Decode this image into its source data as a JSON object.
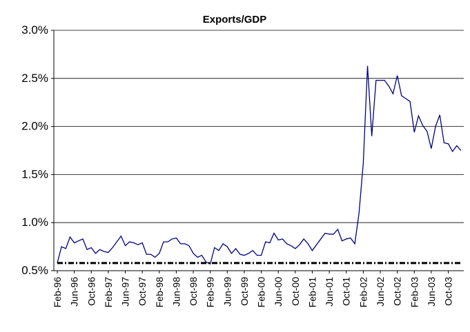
{
  "chart_data": {
    "type": "line",
    "title": "Exports/GDP",
    "categories": [
      "Feb-96",
      null,
      null,
      null,
      "Jun-96",
      null,
      null,
      null,
      "Oct-96",
      null,
      null,
      null,
      "Feb-97",
      null,
      null,
      null,
      "Jun-97",
      null,
      null,
      null,
      "Oct-97",
      null,
      null,
      null,
      "Feb-98",
      null,
      null,
      null,
      "Jun-98",
      null,
      null,
      null,
      "Oct-98",
      null,
      null,
      null,
      "Feb-99",
      null,
      null,
      null,
      "Jun-99",
      null,
      null,
      null,
      "Oct-99",
      null,
      null,
      null,
      "Feb-00",
      null,
      null,
      null,
      "Jun-00",
      null,
      null,
      null,
      "Oct-00",
      null,
      null,
      null,
      "Feb-01",
      null,
      null,
      null,
      "Jun-01",
      null,
      null,
      null,
      "Oct-01",
      null,
      null,
      null,
      "Feb-02",
      null,
      null,
      null,
      "Jun-02",
      null,
      null,
      null,
      "Oct-02",
      null,
      null,
      null,
      "Feb-03",
      null,
      null,
      null,
      "Jun-03",
      null,
      null,
      null,
      "Oct-03",
      null,
      null,
      null
    ],
    "series": [
      {
        "color": "#000080",
        "values": [
          0.58,
          0.75,
          0.73,
          0.85,
          0.79,
          0.81,
          0.83,
          0.72,
          0.74,
          0.68,
          0.72,
          0.7,
          0.69,
          0.74,
          0.8,
          0.86,
          0.76,
          0.8,
          0.79,
          0.77,
          0.79,
          0.67,
          0.67,
          0.64,
          0.68,
          0.8,
          0.8,
          0.83,
          0.84,
          0.78,
          0.78,
          0.76,
          0.68,
          0.64,
          0.66,
          0.59,
          0.57,
          0.74,
          0.71,
          0.78,
          0.75,
          0.68,
          0.73,
          0.67,
          0.66,
          0.68,
          0.71,
          0.66,
          0.66,
          0.8,
          0.79,
          0.89,
          0.82,
          0.83,
          0.78,
          0.76,
          0.73,
          0.77,
          0.83,
          0.78,
          0.71,
          0.77,
          0.83,
          0.89,
          0.88,
          0.88,
          0.93,
          0.81,
          0.83,
          0.84,
          0.78,
          1.1,
          1.62,
          2.63,
          1.9,
          2.48,
          2.48,
          2.48,
          2.42,
          2.34,
          2.53,
          2.32,
          2.29,
          2.26,
          1.94,
          2.11,
          2.01,
          1.95,
          1.77,
          2.0,
          2.12,
          1.83,
          1.82,
          1.74,
          1.8,
          1.75
        ]
      },
      {
        "color": "#000000",
        "dashed": true,
        "values": [
          0.58,
          0.58,
          0.58,
          0.58,
          0.58,
          0.58,
          0.58,
          0.58,
          0.58,
          0.58,
          0.58,
          0.58,
          0.58,
          0.58,
          0.58,
          0.58,
          0.58,
          0.58,
          0.58,
          0.58,
          0.58,
          0.58,
          0.58,
          0.58,
          0.58,
          0.58,
          0.58,
          0.58,
          0.58,
          0.58,
          0.58,
          0.58,
          0.58,
          0.58,
          0.58,
          0.58,
          0.58,
          0.58,
          0.58,
          0.58,
          0.58,
          0.58,
          0.58,
          0.58,
          0.58,
          0.58,
          0.58,
          0.58,
          0.58,
          0.58,
          0.58,
          0.58,
          0.58,
          0.58,
          0.58,
          0.58,
          0.58,
          0.58,
          0.58,
          0.58,
          0.58,
          0.58,
          0.58,
          0.58,
          0.58,
          0.58,
          0.58,
          0.58,
          0.58,
          0.58,
          0.58,
          0.58,
          0.58,
          0.58,
          0.58,
          0.58,
          0.58,
          0.58,
          0.58,
          0.58,
          0.58,
          0.58,
          0.58,
          0.58,
          0.58,
          0.58,
          0.58,
          0.58,
          0.58,
          0.58,
          0.58,
          0.58,
          0.58,
          0.58,
          0.58,
          0.58
        ]
      }
    ],
    "ylim": [
      0.5,
      3.0
    ],
    "yticks": [
      {
        "value": 0.5,
        "label": "0.5%"
      },
      {
        "value": 1.0,
        "label": "1.0%"
      },
      {
        "value": 1.5,
        "label": "1.5%"
      },
      {
        "value": 2.0,
        "label": "2.0%"
      },
      {
        "value": 2.5,
        "label": "2.5%"
      },
      {
        "value": 3.0,
        "label": "3.0%"
      }
    ],
    "grid": true
  }
}
